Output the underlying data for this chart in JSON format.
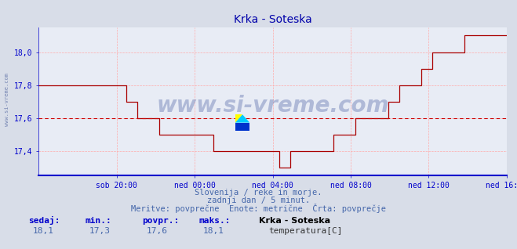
{
  "title": "Krka - Soteska",
  "bg_color": "#d8dde8",
  "plot_bg_color": "#e8ecf5",
  "line_color": "#aa0000",
  "avg_line_color": "#cc0000",
  "axis_color": "#0000cc",
  "grid_color": "#ffaaaa",
  "ylabel_color": "#0000aa",
  "title_color": "#0000aa",
  "ylim": [
    17.25,
    18.15
  ],
  "yticks": [
    17.4,
    17.6,
    17.8,
    18.0
  ],
  "ytick_labels": [
    "17,4",
    "17,6",
    "17,8",
    "18,0"
  ],
  "xtick_labels": [
    "sob 20:00",
    "ned 00:00",
    "ned 04:00",
    "ned 08:00",
    "ned 12:00",
    "ned 16:00"
  ],
  "avg_value": 17.6,
  "footer_line1": "Slovenija / reke in morje.",
  "footer_line2": "zadnji dan / 5 minut.",
  "footer_line3": "Meritve: povprečne  Enote: metrične  Črta: povprečje",
  "stat_labels": [
    "sedaj:",
    "min.:",
    "povpr.:",
    "maks.:"
  ],
  "stat_values": [
    "18,1",
    "17,3",
    "17,6",
    "18,1"
  ],
  "legend_title": "Krka - Soteska",
  "legend_label": "temperatura[C]",
  "watermark_text": "www.si-vreme.com",
  "left_watermark": "www.si-vreme.com",
  "n_points": 288,
  "temp_data": [
    17.8,
    17.8,
    17.8,
    17.8,
    17.8,
    17.8,
    17.8,
    17.8,
    17.8,
    17.8,
    17.8,
    17.8,
    17.8,
    17.8,
    17.8,
    17.8,
    17.8,
    17.8,
    17.8,
    17.8,
    17.8,
    17.8,
    17.8,
    17.8,
    17.8,
    17.8,
    17.8,
    17.8,
    17.8,
    17.8,
    17.8,
    17.8,
    17.8,
    17.8,
    17.8,
    17.8,
    17.8,
    17.8,
    17.8,
    17.8,
    17.8,
    17.8,
    17.8,
    17.8,
    17.8,
    17.8,
    17.8,
    17.8,
    17.7,
    17.7,
    17.7,
    17.7,
    17.7,
    17.7,
    17.6,
    17.6,
    17.6,
    17.6,
    17.6,
    17.6,
    17.6,
    17.6,
    17.6,
    17.6,
    17.6,
    17.6,
    17.5,
    17.5,
    17.5,
    17.5,
    17.5,
    17.5,
    17.5,
    17.5,
    17.5,
    17.5,
    17.5,
    17.5,
    17.5,
    17.5,
    17.5,
    17.5,
    17.5,
    17.5,
    17.5,
    17.5,
    17.5,
    17.5,
    17.5,
    17.5,
    17.5,
    17.5,
    17.5,
    17.5,
    17.5,
    17.5,
    17.4,
    17.4,
    17.4,
    17.4,
    17.4,
    17.4,
    17.4,
    17.4,
    17.4,
    17.4,
    17.4,
    17.4,
    17.4,
    17.4,
    17.4,
    17.4,
    17.4,
    17.4,
    17.4,
    17.4,
    17.4,
    17.4,
    17.4,
    17.4,
    17.4,
    17.4,
    17.4,
    17.4,
    17.4,
    17.4,
    17.4,
    17.4,
    17.4,
    17.4,
    17.4,
    17.4,
    17.3,
    17.3,
    17.3,
    17.3,
    17.3,
    17.3,
    17.4,
    17.4,
    17.4,
    17.4,
    17.4,
    17.4,
    17.4,
    17.4,
    17.4,
    17.4,
    17.4,
    17.4,
    17.4,
    17.4,
    17.4,
    17.4,
    17.4,
    17.4,
    17.4,
    17.4,
    17.4,
    17.4,
    17.4,
    17.4,
    17.5,
    17.5,
    17.5,
    17.5,
    17.5,
    17.5,
    17.5,
    17.5,
    17.5,
    17.5,
    17.5,
    17.5,
    17.6,
    17.6,
    17.6,
    17.6,
    17.6,
    17.6,
    17.6,
    17.6,
    17.6,
    17.6,
    17.6,
    17.6,
    17.6,
    17.6,
    17.6,
    17.6,
    17.6,
    17.6,
    17.7,
    17.7,
    17.7,
    17.7,
    17.7,
    17.7,
    17.8,
    17.8,
    17.8,
    17.8,
    17.8,
    17.8,
    17.8,
    17.8,
    17.8,
    17.8,
    17.8,
    17.8,
    17.9,
    17.9,
    17.9,
    17.9,
    17.9,
    17.9,
    18.0,
    18.0,
    18.0,
    18.0,
    18.0,
    18.0,
    18.0,
    18.0,
    18.0,
    18.0,
    18.0,
    18.0,
    18.0,
    18.0,
    18.0,
    18.0,
    18.0,
    18.0,
    18.1,
    18.1,
    18.1,
    18.1,
    18.1,
    18.1,
    18.1,
    18.1,
    18.1,
    18.1,
    18.1,
    18.1,
    18.1,
    18.1,
    18.1,
    18.1,
    18.1,
    18.1,
    18.1,
    18.1,
    18.1,
    18.1,
    18.1,
    18.1
  ]
}
